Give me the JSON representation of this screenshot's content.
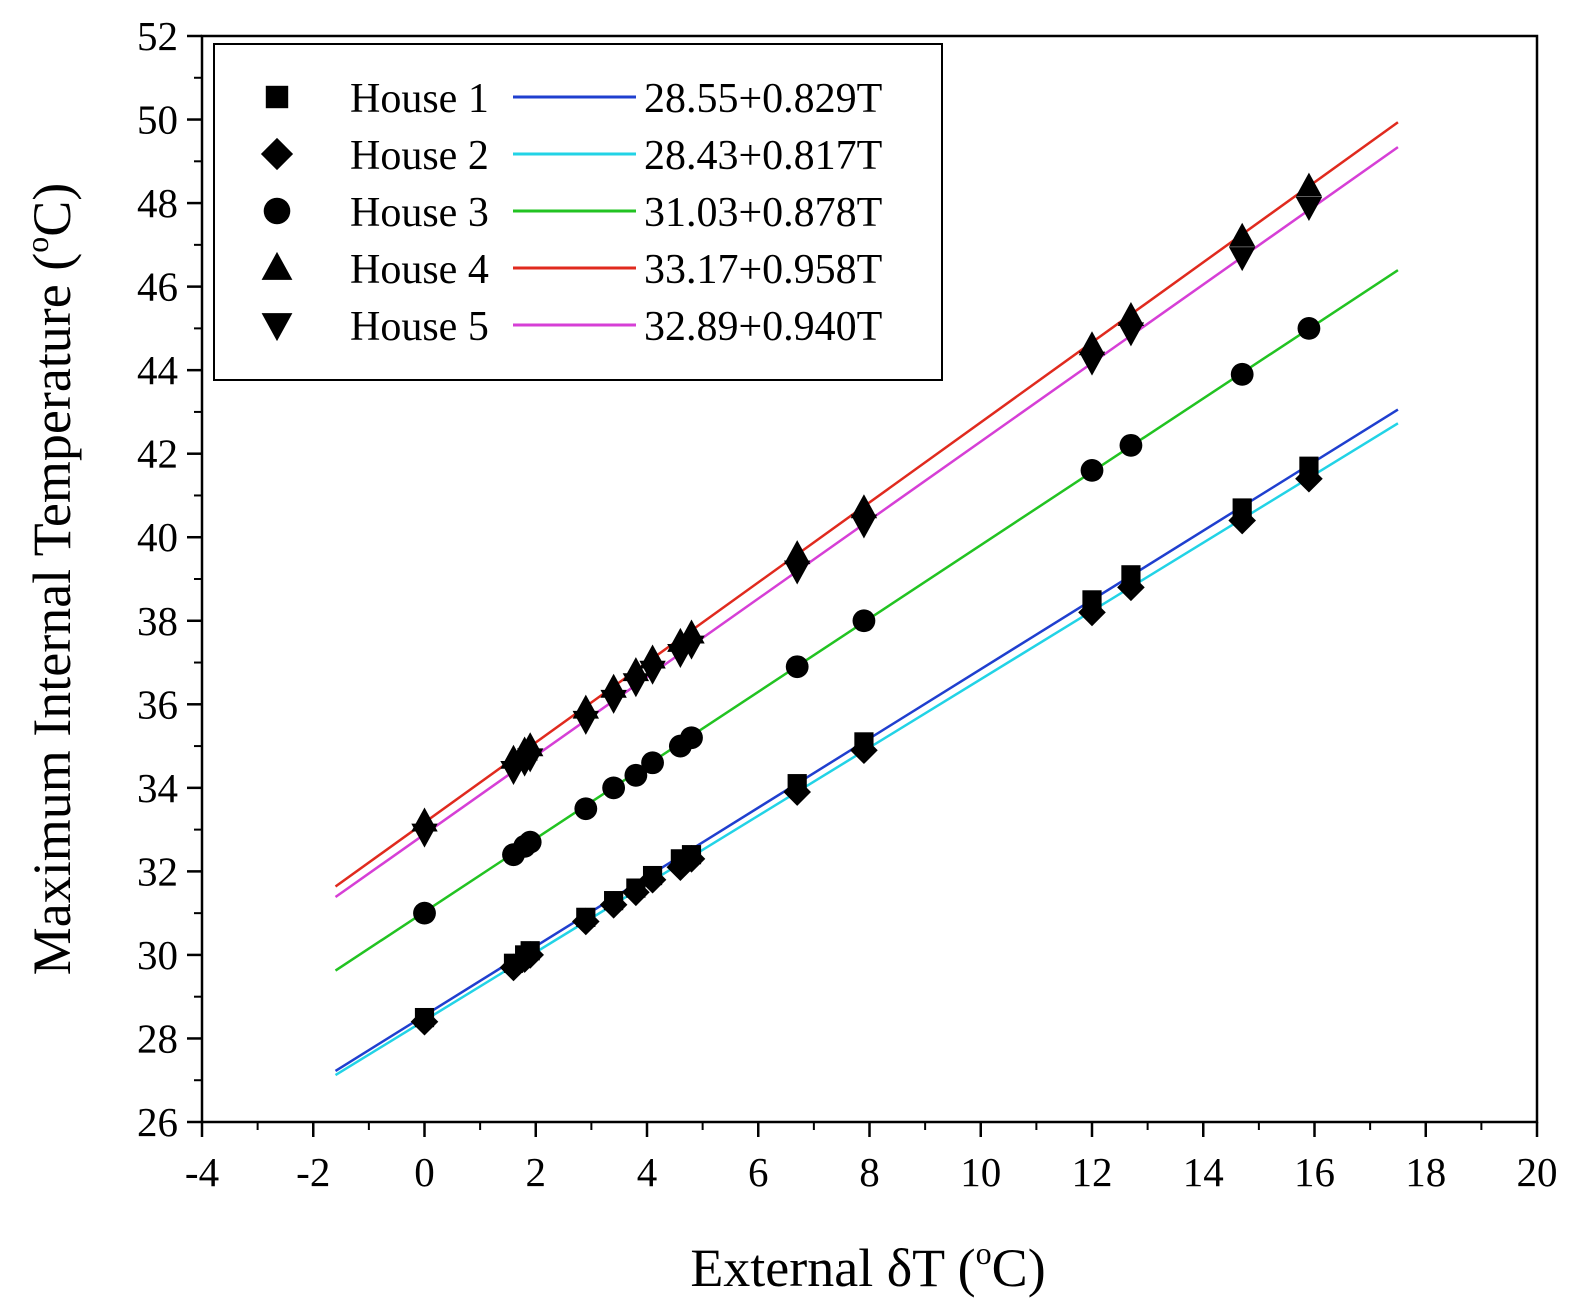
{
  "chart_data": {
    "type": "scatter",
    "xlabel": "External δT (",
    "xlabel_sup": "o",
    "xlabel_end": "C)",
    "ylabel": "Maximum Internal Temperature (",
    "ylabel_sup": "o",
    "ylabel_end": "C)",
    "xlim": [
      -4,
      20
    ],
    "ylim": [
      26,
      52
    ],
    "xticks": [
      -4,
      -2,
      0,
      2,
      4,
      6,
      8,
      10,
      12,
      14,
      16,
      18,
      20
    ],
    "yticks": [
      26,
      28,
      30,
      32,
      34,
      36,
      38,
      40,
      42,
      44,
      46,
      48,
      50,
      52
    ],
    "legend_position": "top-left",
    "fit_x_range": [
      -1.6,
      17.5
    ],
    "x": [
      0,
      1.6,
      1.8,
      1.9,
      2.9,
      3.4,
      3.8,
      4.1,
      4.6,
      4.8,
      6.7,
      7.9,
      12.0,
      12.7,
      14.7,
      15.9
    ],
    "series": [
      {
        "name": "House 1",
        "marker": "square",
        "values": [
          28.5,
          29.8,
          30.0,
          30.1,
          30.9,
          31.3,
          31.6,
          31.9,
          32.3,
          32.4,
          34.1,
          35.1,
          38.5,
          39.1,
          40.7,
          41.7
        ],
        "fit_label": "28.55+0.829T",
        "fit": {
          "intercept": 28.55,
          "slope": 0.829
        },
        "color": "#1f3fcf"
      },
      {
        "name": "House 2",
        "marker": "diamond",
        "values": [
          28.4,
          29.7,
          29.9,
          30.0,
          30.8,
          31.2,
          31.5,
          31.8,
          32.1,
          32.3,
          33.9,
          34.9,
          38.2,
          38.8,
          40.4,
          41.4
        ],
        "fit_label": "28.43+0.817T",
        "fit": {
          "intercept": 28.43,
          "slope": 0.817
        },
        "color": "#22d3e6"
      },
      {
        "name": "House 3",
        "marker": "circle",
        "values": [
          31.0,
          32.4,
          32.6,
          32.7,
          33.5,
          34.0,
          34.3,
          34.6,
          35.0,
          35.2,
          36.9,
          38.0,
          41.6,
          42.2,
          43.9,
          45.0
        ],
        "fit_label": "31.03+0.878T",
        "fit": {
          "intercept": 31.03,
          "slope": 0.878
        },
        "color": "#22c322"
      },
      {
        "name": "House 4",
        "marker": "triangle-up",
        "values": [
          33.2,
          34.7,
          34.9,
          35.0,
          35.9,
          36.4,
          36.8,
          37.1,
          37.5,
          37.7,
          39.6,
          40.7,
          44.6,
          45.3,
          47.2,
          48.4
        ],
        "fit_label": "33.17+0.958T",
        "fit": {
          "intercept": 33.17,
          "slope": 0.958
        },
        "color": "#e02a1e"
      },
      {
        "name": "House 5",
        "marker": "triangle-down",
        "values": [
          32.9,
          34.4,
          34.6,
          34.7,
          35.6,
          36.1,
          36.5,
          36.8,
          37.2,
          37.4,
          39.2,
          40.3,
          44.2,
          44.9,
          46.7,
          47.9
        ],
        "fit_label": "32.89+0.940T",
        "fit": {
          "intercept": 32.89,
          "slope": 0.94
        },
        "color": "#d63fd6"
      }
    ]
  }
}
